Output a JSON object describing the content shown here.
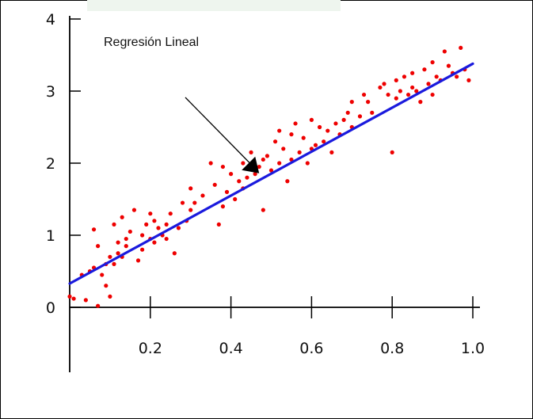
{
  "chart_data": {
    "type": "scatter",
    "title": "",
    "xlabel": "",
    "ylabel": "",
    "xlim": [
      0,
      1.0
    ],
    "ylim": [
      -0.9,
      4
    ],
    "x_ticks": [
      0.2,
      0.4,
      0.6,
      0.8,
      1.0
    ],
    "x_tick_labels": [
      "0.2",
      "0.4",
      "0.6",
      "0.8",
      "1.0"
    ],
    "y_ticks": [
      0,
      1,
      2,
      3,
      4
    ],
    "y_tick_labels": [
      "0",
      "1",
      "2",
      "3",
      "4"
    ],
    "grid": false,
    "point_color": "#ee0000",
    "line_color": "#1a1add",
    "annotation": {
      "text": "Regresión Lineal",
      "points_to": {
        "x": 0.47,
        "y": 1.86
      }
    },
    "regression_line": {
      "x": [
        0.0,
        1.0
      ],
      "y": [
        0.33,
        3.38
      ]
    },
    "series": [
      {
        "x": [
          0.0,
          0.01,
          0.03,
          0.04,
          0.05,
          0.06,
          0.06,
          0.07,
          0.07,
          0.08,
          0.09,
          0.09,
          0.1,
          0.1,
          0.11,
          0.11,
          0.12,
          0.12,
          0.13,
          0.13,
          0.14,
          0.14,
          0.15,
          0.16,
          0.17,
          0.18,
          0.18,
          0.19,
          0.2,
          0.2,
          0.21,
          0.21,
          0.22,
          0.23,
          0.24,
          0.24,
          0.25,
          0.26,
          0.27,
          0.28,
          0.29,
          0.3,
          0.3,
          0.31,
          0.33,
          0.35,
          0.36,
          0.37,
          0.38,
          0.38,
          0.39,
          0.4,
          0.41,
          0.42,
          0.43,
          0.43,
          0.44,
          0.45,
          0.46,
          0.47,
          0.48,
          0.48,
          0.49,
          0.5,
          0.51,
          0.52,
          0.52,
          0.53,
          0.54,
          0.55,
          0.55,
          0.56,
          0.57,
          0.58,
          0.59,
          0.6,
          0.6,
          0.61,
          0.62,
          0.63,
          0.64,
          0.65,
          0.66,
          0.67,
          0.68,
          0.69,
          0.7,
          0.7,
          0.72,
          0.73,
          0.74,
          0.75,
          0.77,
          0.78,
          0.79,
          0.8,
          0.81,
          0.81,
          0.82,
          0.83,
          0.84,
          0.85,
          0.85,
          0.86,
          0.87,
          0.88,
          0.89,
          0.9,
          0.9,
          0.91,
          0.92,
          0.93,
          0.94,
          0.95,
          0.96,
          0.97,
          0.98,
          0.99
        ],
        "y": [
          0.15,
          0.12,
          0.45,
          0.1,
          0.5,
          1.08,
          0.55,
          0.02,
          0.85,
          0.45,
          0.6,
          0.3,
          0.7,
          0.15,
          0.6,
          1.15,
          0.9,
          0.75,
          1.25,
          0.7,
          0.95,
          0.85,
          1.05,
          1.35,
          0.65,
          1.0,
          0.8,
          1.15,
          0.95,
          1.3,
          0.9,
          1.2,
          1.1,
          1.0,
          1.15,
          0.95,
          1.3,
          0.75,
          1.1,
          1.45,
          1.2,
          1.35,
          1.65,
          1.45,
          1.55,
          2.0,
          1.7,
          1.15,
          1.95,
          1.4,
          1.6,
          1.85,
          1.5,
          1.75,
          2.0,
          1.65,
          1.8,
          2.15,
          1.85,
          1.95,
          1.35,
          2.05,
          2.1,
          1.9,
          2.3,
          2.0,
          2.45,
          2.2,
          1.75,
          2.4,
          2.05,
          2.55,
          2.15,
          2.35,
          2.0,
          2.2,
          2.6,
          2.25,
          2.5,
          2.3,
          2.45,
          2.15,
          2.55,
          2.4,
          2.6,
          2.7,
          2.5,
          2.85,
          2.65,
          2.95,
          2.85,
          2.7,
          3.05,
          3.1,
          2.95,
          2.15,
          3.15,
          2.9,
          3.0,
          3.2,
          2.95,
          3.25,
          3.05,
          3.0,
          2.85,
          3.3,
          3.1,
          2.95,
          3.4,
          3.2,
          3.15,
          3.55,
          3.35,
          3.25,
          3.2,
          3.6,
          3.3,
          3.15
        ]
      }
    ]
  }
}
